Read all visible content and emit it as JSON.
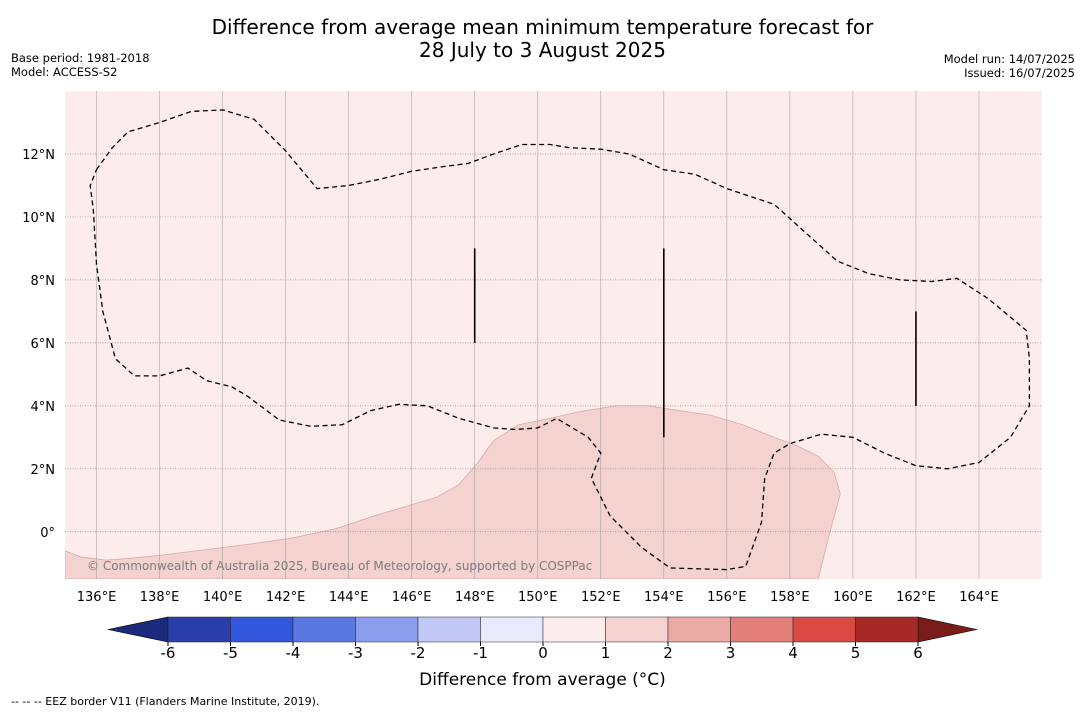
{
  "title": {
    "line1": "Difference from average mean minimum temperature forecast for",
    "line2": "28 July to 3 August 2025"
  },
  "meta_left": {
    "base_period": "Base period: 1981-2018",
    "model": "Model: ACCESS-S2"
  },
  "meta_right": {
    "model_run": "Model run: 14/07/2025",
    "issued": "Issued: 16/07/2025"
  },
  "map": {
    "lon_range": [
      135,
      166
    ],
    "lat_range": [
      -1.5,
      14
    ],
    "lon_ticks": [
      136,
      138,
      140,
      142,
      144,
      146,
      148,
      150,
      152,
      154,
      156,
      158,
      160,
      162,
      164
    ],
    "lon_tick_labels": [
      "136°E",
      "138°E",
      "140°E",
      "142°E",
      "144°E",
      "146°E",
      "148°E",
      "150°E",
      "152°E",
      "154°E",
      "156°E",
      "158°E",
      "160°E",
      "162°E",
      "164°E"
    ],
    "lat_ticks": [
      12,
      10,
      8,
      6,
      4,
      2,
      0
    ],
    "lat_tick_labels": [
      "12°N",
      "10°N",
      "8°N",
      "6°N",
      "4°N",
      "2°N",
      "0°"
    ],
    "background_category": "0 to 1",
    "warm_region_category": "1 to 2",
    "copyright": "© Commonwealth of Australia 2025, Bureau of Meteorology, supported by COSPPac",
    "eez_border": [
      [
        136,
        11.5
      ],
      [
        136.5,
        12.2
      ],
      [
        137,
        12.7
      ],
      [
        138,
        13
      ],
      [
        139,
        13.35
      ],
      [
        140,
        13.4
      ],
      [
        141,
        13.1
      ],
      [
        142,
        12.1
      ],
      [
        143,
        10.9
      ],
      [
        144,
        11
      ],
      [
        145,
        11.2
      ],
      [
        146,
        11.45
      ],
      [
        147,
        11.6
      ],
      [
        147.8,
        11.7
      ],
      [
        148.6,
        12
      ],
      [
        149.5,
        12.3
      ],
      [
        150.4,
        12.3
      ],
      [
        151,
        12.2
      ],
      [
        152,
        12.15
      ],
      [
        152.9,
        12
      ],
      [
        154,
        11.5
      ],
      [
        155,
        11.35
      ],
      [
        156,
        10.9
      ],
      [
        157.5,
        10.4
      ],
      [
        158.5,
        9.5
      ],
      [
        159.5,
        8.6
      ],
      [
        160.5,
        8.2
      ],
      [
        161.5,
        8
      ],
      [
        162.5,
        7.95
      ],
      [
        163.3,
        8.05
      ],
      [
        164.3,
        7.4
      ],
      [
        165.5,
        6.4
      ],
      [
        165.6,
        5.5
      ],
      [
        165.6,
        4
      ],
      [
        165,
        3
      ],
      [
        164,
        2.2
      ],
      [
        163,
        2
      ],
      [
        162,
        2.1
      ],
      [
        161,
        2.5
      ],
      [
        160,
        3
      ],
      [
        159,
        3.1
      ],
      [
        158,
        2.8
      ],
      [
        157.5,
        2.5
      ],
      [
        157.2,
        1.7
      ],
      [
        157.1,
        0.3
      ],
      [
        156.6,
        -1.1
      ],
      [
        156,
        -1.2
      ],
      [
        154.2,
        -1.15
      ],
      [
        153.3,
        -0.5
      ],
      [
        152.3,
        0.5
      ],
      [
        151.7,
        1.7
      ],
      [
        152,
        2.5
      ],
      [
        151.6,
        3
      ],
      [
        150.6,
        3.6
      ],
      [
        150,
        3.3
      ],
      [
        149.3,
        3.25
      ],
      [
        148.6,
        3.3
      ],
      [
        147.5,
        3.6
      ],
      [
        146.5,
        4
      ],
      [
        145.6,
        4.05
      ],
      [
        144.7,
        3.85
      ],
      [
        143.8,
        3.4
      ],
      [
        142.8,
        3.35
      ],
      [
        141.8,
        3.55
      ],
      [
        140.8,
        4.3
      ],
      [
        140.3,
        4.6
      ],
      [
        139.5,
        4.8
      ],
      [
        138.9,
        5.2
      ],
      [
        138,
        4.95
      ],
      [
        137.2,
        4.95
      ],
      [
        136.6,
        5.5
      ],
      [
        136.2,
        7
      ],
      [
        136,
        8.5
      ],
      [
        135.9,
        10.2
      ],
      [
        135.8,
        11
      ],
      [
        136,
        11.5
      ]
    ],
    "warm_region": [
      [
        150.8,
        3.7
      ],
      [
        151.5,
        3.85
      ],
      [
        152.5,
        4.0
      ],
      [
        153.5,
        4.0
      ],
      [
        154.5,
        3.85
      ],
      [
        155.5,
        3.7
      ],
      [
        156.5,
        3.4
      ],
      [
        157.5,
        3.0
      ],
      [
        158.3,
        2.7
      ],
      [
        158.9,
        2.4
      ],
      [
        159.4,
        1.9
      ],
      [
        159.6,
        1.2
      ],
      [
        159.3,
        0.1
      ],
      [
        158.9,
        -1.5
      ],
      [
        135,
        -1.5
      ],
      [
        135,
        -0.6
      ],
      [
        135.5,
        -0.8
      ],
      [
        136.3,
        -0.9
      ],
      [
        137,
        -0.85
      ],
      [
        138,
        -0.75
      ],
      [
        139.2,
        -0.6
      ],
      [
        140.8,
        -0.4
      ],
      [
        142.2,
        -0.2
      ],
      [
        143.6,
        0.1
      ],
      [
        144.8,
        0.5
      ],
      [
        145.8,
        0.8
      ],
      [
        146.8,
        1.1
      ],
      [
        147.5,
        1.5
      ],
      [
        148.1,
        2.2
      ],
      [
        148.6,
        2.9
      ],
      [
        149.4,
        3.4
      ],
      [
        150.4,
        3.6
      ],
      [
        150.8,
        3.7
      ]
    ],
    "solid_segments": [
      {
        "lon": 148,
        "lat_from": 6,
        "lat_to": 9
      },
      {
        "lon": 154,
        "lat_from": 3,
        "lat_to": 9
      },
      {
        "lon": 162,
        "lat_from": 4,
        "lat_to": 7
      }
    ]
  },
  "colorbar": {
    "ticks": [
      -6,
      -5,
      -4,
      -3,
      -2,
      -1,
      0,
      1,
      2,
      3,
      4,
      5,
      6
    ],
    "tick_labels": [
      "-6",
      "-5",
      "-4",
      "-3",
      "-2",
      "-1",
      "0",
      "1",
      "2",
      "3",
      "4",
      "5",
      "6"
    ],
    "colors": [
      "#2a3eab",
      "#3257dd",
      "#5a78e2",
      "#8a9ded",
      "#c0c9f5",
      "#e8eafb",
      "#fcecec",
      "#f3d2d0",
      "#ecaaa5",
      "#e57f7a",
      "#d84a42",
      "#a52a25"
    ],
    "under_color": "#1b2a7d",
    "over_color": "#7a1c1a",
    "label": "Difference from average ($^\\circ$C)",
    "label_display": "Difference from average (°C)"
  },
  "colors": {
    "background": "#fcecec",
    "warm_region": "#f3d2d0",
    "warm_region_edge": "#d9a39e",
    "grid": "#8a8a8a",
    "eez": "#000000"
  },
  "footnote": "--  --  -- EEZ border V11 (Flanders Marine Institute, 2019)."
}
